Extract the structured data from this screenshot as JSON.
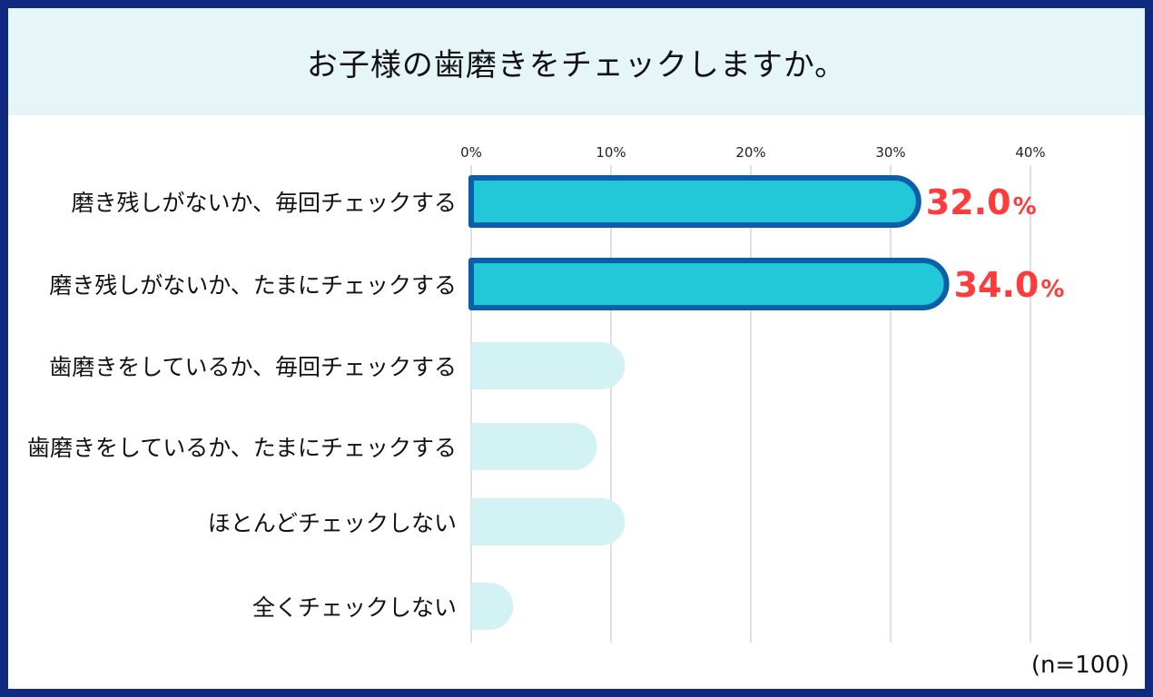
{
  "title": "お子様の歯磨きをチェックしますか。",
  "sample_note": "(n=100)",
  "colors": {
    "frame": "#0f2a7e",
    "title_band": "#e6f6f8",
    "highlight_fill": "#22c7d8",
    "highlight_stroke": "#0b5ea8",
    "muted_fill": "#d3f2f4",
    "value_label": "#ff3b3b",
    "grid": "#d6d6d6"
  },
  "chart_data": {
    "type": "bar",
    "orientation": "horizontal",
    "categories": [
      "磨き残しがないか、毎回チェックする",
      "磨き残しがないか、たまにチェックする",
      "歯磨きをしているか、毎回チェックする",
      "歯磨きをしているか、たまにチェックする",
      "ほとんどチェックしない",
      "全くチェックしない"
    ],
    "values": [
      32.0,
      34.0,
      11.0,
      9.0,
      11.0,
      3.0
    ],
    "highlighted": [
      true,
      true,
      false,
      false,
      false,
      false
    ],
    "value_labels": [
      "32.0",
      "34.0",
      "",
      "",
      "",
      ""
    ],
    "value_unit": "%",
    "xlim": [
      0,
      40
    ],
    "xticks": [
      "0%",
      "10%",
      "20%",
      "30%",
      "40%"
    ],
    "xtick_values": [
      0,
      10,
      20,
      30,
      40
    ],
    "grid": true
  }
}
